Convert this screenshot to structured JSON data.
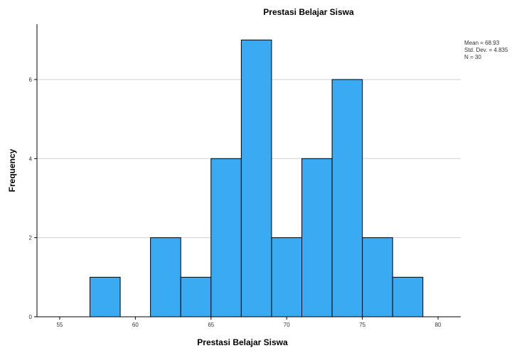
{
  "chart_data": {
    "type": "bar",
    "title": "Prestasi Belajar Siswa",
    "xlabel": "Prestasi Belajar Siswa",
    "ylabel": "Frequency",
    "bins": [
      {
        "start": 57,
        "end": 59,
        "value": 1
      },
      {
        "start": 59,
        "end": 61,
        "value": 0
      },
      {
        "start": 61,
        "end": 63,
        "value": 2
      },
      {
        "start": 63,
        "end": 65,
        "value": 1
      },
      {
        "start": 65,
        "end": 67,
        "value": 4
      },
      {
        "start": 67,
        "end": 69,
        "value": 7
      },
      {
        "start": 69,
        "end": 71,
        "value": 2
      },
      {
        "start": 71,
        "end": 73,
        "value": 4
      },
      {
        "start": 73,
        "end": 75,
        "value": 6
      },
      {
        "start": 75,
        "end": 77,
        "value": 2
      },
      {
        "start": 77,
        "end": 79,
        "value": 1
      }
    ],
    "xlim": [
      53.5,
      81.5
    ],
    "ylim": [
      0,
      7.4
    ],
    "x_ticks": [
      "55",
      "60",
      "65",
      "70",
      "75",
      "80"
    ],
    "y_ticks": [
      "0",
      "2",
      "4",
      "6"
    ],
    "grid": "horizontal",
    "bar_color": "#3aabf3",
    "stats": [
      "Mean = 68.93",
      "Std. Dev. = 4.835",
      "N = 30"
    ],
    "stats_position": "top-right"
  }
}
